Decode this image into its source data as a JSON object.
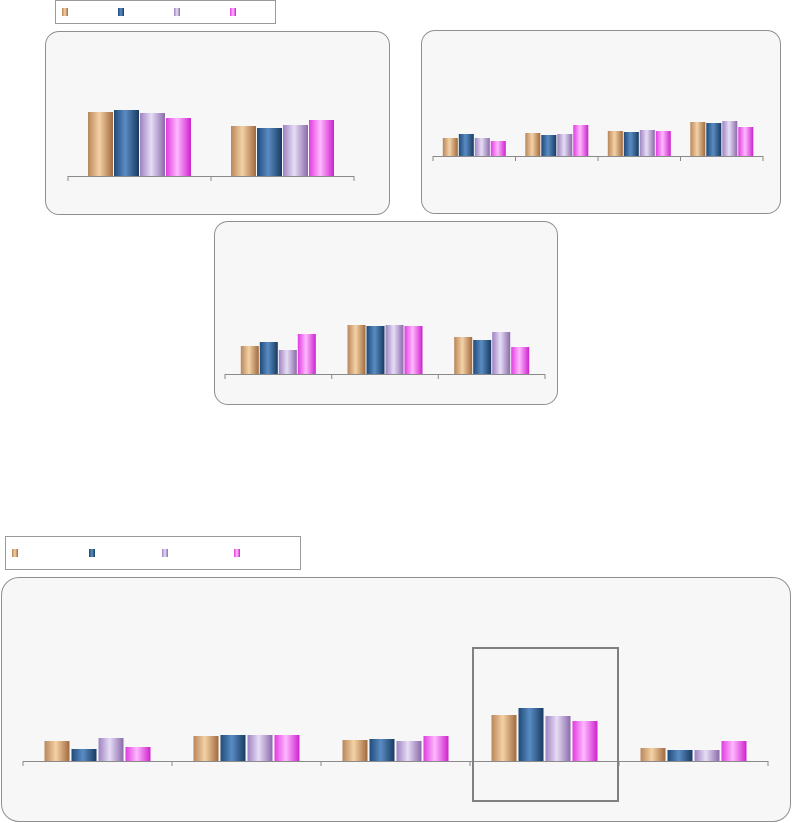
{
  "colors": {
    "series1": [
      "#b8865a",
      "#f4d2a6",
      "#a06a3e"
    ],
    "series2": [
      "#1f4a78",
      "#5a8cc4",
      "#173a60"
    ],
    "series3": [
      "#9e82c2",
      "#e6ddf5",
      "#8a6aaa"
    ],
    "series4": [
      "#e03ce0",
      "#ffb8ff",
      "#cc22cc"
    ]
  },
  "legends": [
    {
      "items": [
        {
          "label": ""
        },
        {
          "label": ""
        },
        {
          "label": ""
        },
        {
          "label": ""
        }
      ]
    },
    {
      "items": [
        {
          "label": ""
        },
        {
          "label": ""
        },
        {
          "label": ""
        },
        {
          "label": ""
        }
      ]
    }
  ],
  "chart_data": [
    {
      "type": "bar",
      "title": "",
      "xlabel": "",
      "ylabel": "",
      "categories": [
        "",
        ""
      ],
      "ylim": [
        0,
        100
      ],
      "series": [
        {
          "values": [
            64,
            50
          ]
        },
        {
          "values": [
            66,
            48
          ]
        },
        {
          "values": [
            63,
            51
          ]
        },
        {
          "values": [
            58,
            56
          ]
        }
      ]
    },
    {
      "type": "bar",
      "title": "",
      "xlabel": "",
      "ylabel": "",
      "categories": [
        "",
        "",
        "",
        ""
      ],
      "ylim": [
        0,
        100
      ],
      "series": [
        {
          "values": [
            18,
            23,
            25,
            34
          ]
        },
        {
          "values": [
            22,
            21,
            24,
            33
          ]
        },
        {
          "values": [
            18,
            22,
            26,
            35
          ]
        },
        {
          "values": [
            15,
            31,
            25,
            29
          ]
        }
      ]
    },
    {
      "type": "bar",
      "title": "",
      "xlabel": "",
      "ylabel": "",
      "categories": [
        "",
        "",
        ""
      ],
      "ylim": [
        0,
        100
      ],
      "series": [
        {
          "values": [
            28,
            49,
            37
          ]
        },
        {
          "values": [
            32,
            48,
            34
          ]
        },
        {
          "values": [
            24,
            49,
            42
          ]
        },
        {
          "values": [
            40,
            48,
            27
          ]
        }
      ]
    },
    {
      "type": "bar",
      "title": "",
      "xlabel": "",
      "ylabel": "",
      "categories": [
        "",
        "",
        "",
        "",
        ""
      ],
      "ylim": [
        0,
        100
      ],
      "series": [
        {
          "values": [
            20,
            25,
            21,
            46,
            13
          ]
        },
        {
          "values": [
            12,
            26,
            22,
            53,
            11
          ]
        },
        {
          "values": [
            23,
            26,
            20,
            45,
            11
          ]
        },
        {
          "values": [
            14,
            26,
            25,
            40,
            20
          ]
        }
      ],
      "highlight_category": 3
    }
  ]
}
